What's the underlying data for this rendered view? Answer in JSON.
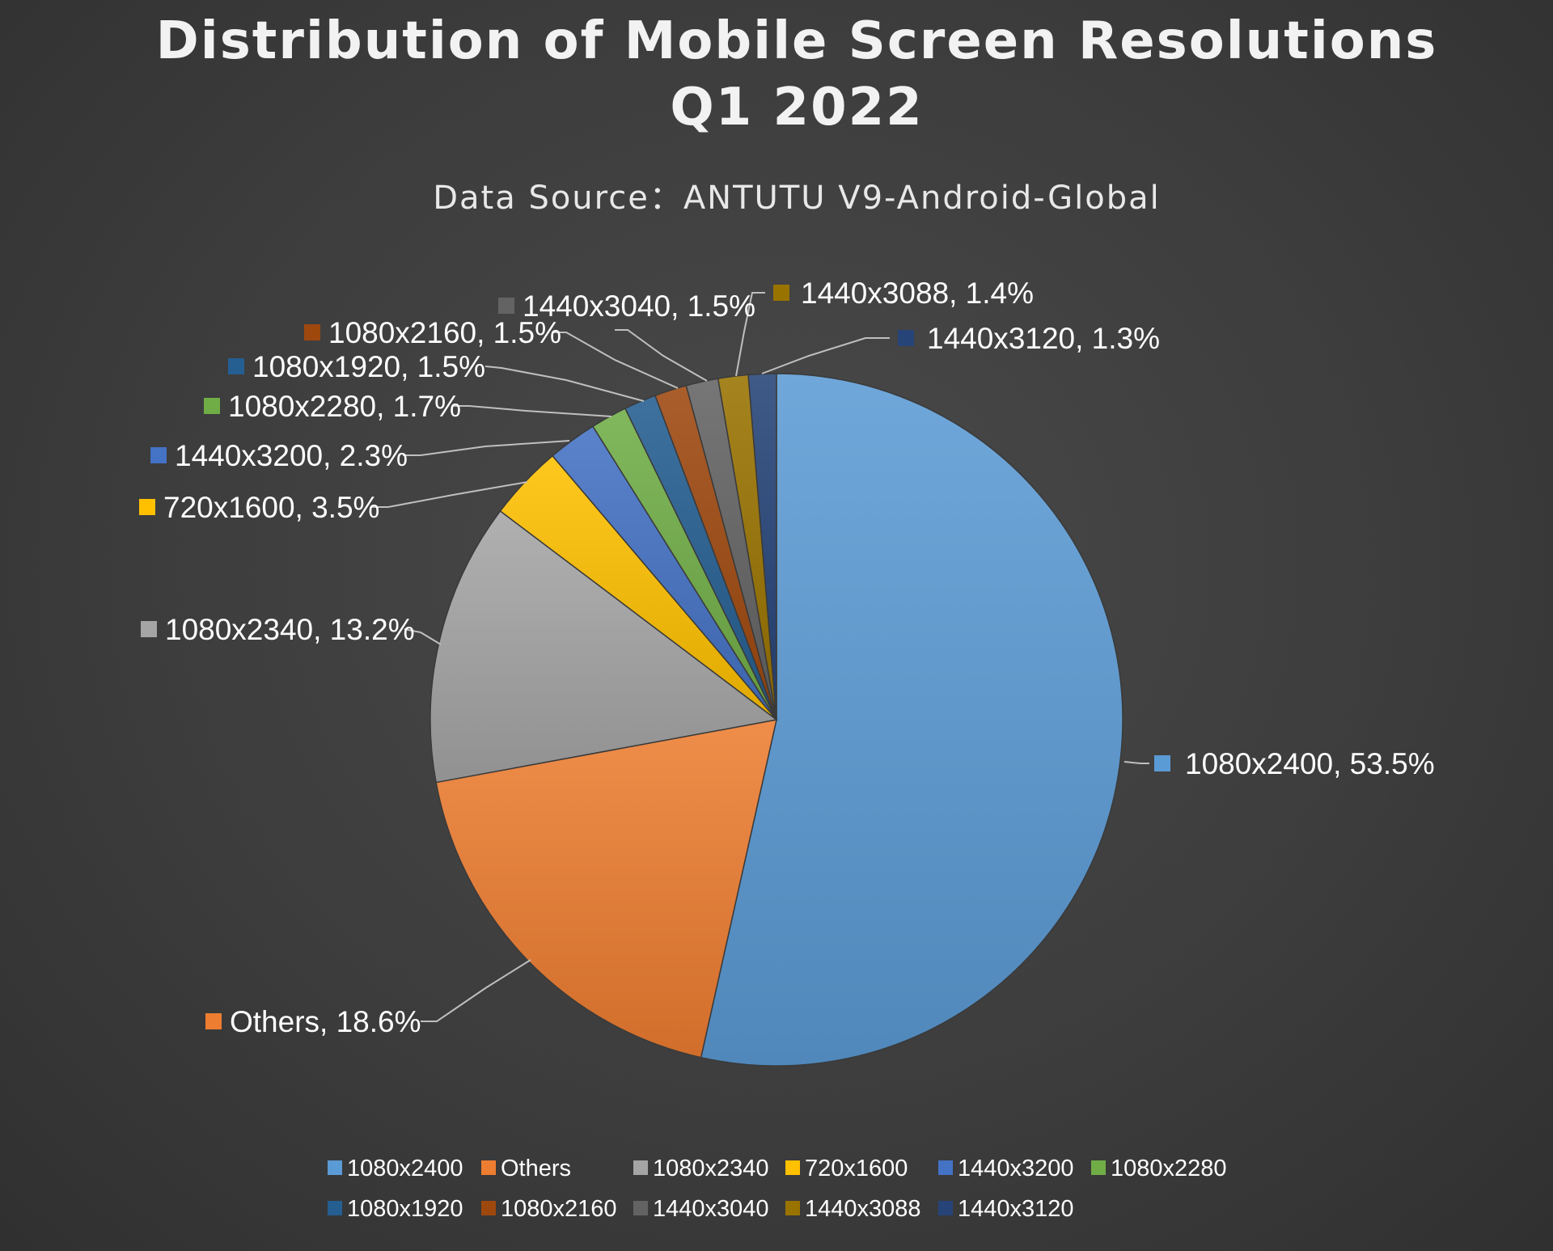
{
  "chart_data": {
    "type": "pie",
    "title": [
      "Distribution of Mobile Screen Resolutions",
      "Q1 2022"
    ],
    "subtitle": "Data Source：ANTUTU V9-Android-Global",
    "slices": [
      {
        "label": "1080x2400",
        "value": 53.5,
        "text": "1080x2400, 53.5%",
        "color": "#5b9bd5"
      },
      {
        "label": "Others",
        "value": 18.6,
        "text": "Others, 18.6%",
        "color": "#ed7d31"
      },
      {
        "label": "1080x2340",
        "value": 13.2,
        "text": "1080x2340, 13.2%",
        "color": "#a5a5a5"
      },
      {
        "label": "720x1600",
        "value": 3.5,
        "text": "720x1600, 3.5%",
        "color": "#ffc000"
      },
      {
        "label": "1440x3200",
        "value": 2.3,
        "text": "1440x3200, 2.3%",
        "color": "#4472c4"
      },
      {
        "label": "1080x2280",
        "value": 1.7,
        "text": "1080x2280, 1.7%",
        "color": "#70ad47"
      },
      {
        "label": "1080x1920",
        "value": 1.5,
        "text": "1080x1920, 1.5%",
        "color": "#255e91"
      },
      {
        "label": "1080x2160",
        "value": 1.5,
        "text": "1080x2160, 1.5%",
        "color": "#9e480e"
      },
      {
        "label": "1440x3040",
        "value": 1.5,
        "text": "1440x3040, 1.5%",
        "color": "#636363"
      },
      {
        "label": "1440x3088",
        "value": 1.4,
        "text": "1440x3088, 1.4%",
        "color": "#997300"
      },
      {
        "label": "1440x3120",
        "value": 1.3,
        "text": "1440x3120, 1.3%",
        "color": "#264478"
      }
    ],
    "legend_position": "bottom"
  }
}
